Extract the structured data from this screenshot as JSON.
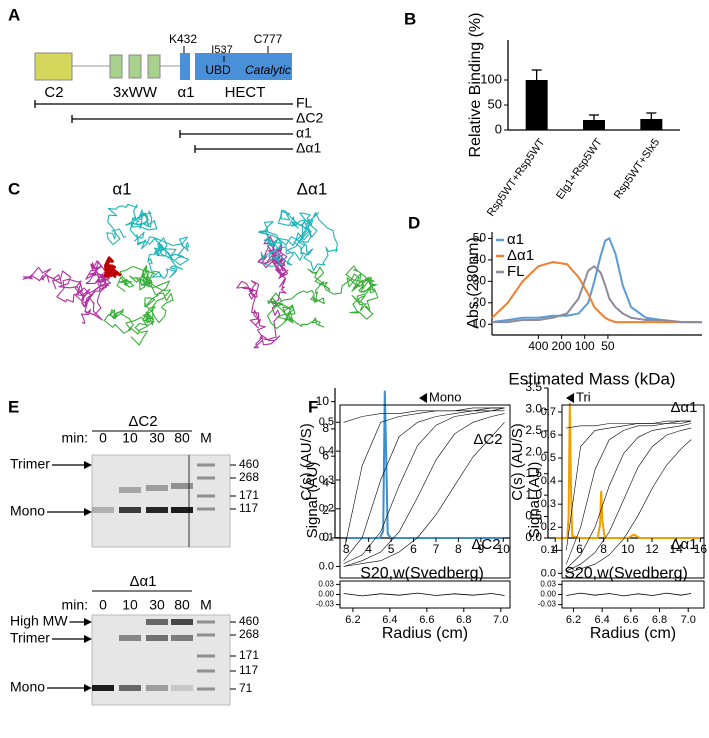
{
  "panel_labels": [
    "A",
    "B",
    "C",
    "D",
    "E",
    "F"
  ],
  "panel_a": {
    "domains": [
      "C2",
      "3xWW",
      "α1",
      "HECT"
    ],
    "residues": [
      "K432",
      "I537",
      "C777"
    ],
    "subdomains": [
      "UBD",
      "Catalytic"
    ],
    "constructs": [
      "FL",
      "ΔC2",
      "α1",
      "Δα1"
    ]
  },
  "panel_c": {
    "labels": [
      "α1",
      "Δα1"
    ]
  },
  "panel_e": {
    "gels": [
      {
        "title": "ΔC2",
        "time_label": "min:",
        "lanes": [
          0,
          10,
          30,
          80
        ],
        "marker_lane": "M",
        "bands": [
          "Trimer",
          "Mono"
        ],
        "markers": [
          460,
          268,
          171,
          117
        ]
      },
      {
        "title": "Δα1",
        "time_label": "min:",
        "lanes": [
          0,
          10,
          30,
          80
        ],
        "marker_lane": "M",
        "bands": [
          "High MW",
          "Trimer",
          "Mono"
        ],
        "markers": [
          460,
          268,
          171,
          117,
          71
        ]
      }
    ]
  },
  "chart_data": [
    {
      "type": "bar",
      "categories": [
        "Rsp5WT+Rsp5WT",
        "Elg1+Rsp5WT",
        "Rsp5WT+Slx5"
      ],
      "values": [
        100,
        20,
        22
      ],
      "errors": [
        20,
        10,
        12
      ],
      "color": "#000000",
      "ylim": [
        0,
        180
      ],
      "yticks": [
        0,
        50,
        100
      ],
      "y_label": "Relative Binding (%)"
    },
    {
      "type": "line",
      "x_scale": "log",
      "x": [
        1600,
        1000,
        640,
        400,
        260,
        170,
        120,
        90,
        75,
        62,
        54,
        48,
        40,
        32,
        25,
        16,
        10,
        5.5,
        3
      ],
      "xlim": [
        1600,
        3
      ],
      "xticks": [
        400,
        200,
        100,
        50
      ],
      "ylim": [
        5,
        53
      ],
      "yticks": [
        10,
        20,
        30,
        40,
        50
      ],
      "x_label": "Estimated Mass (kDa)",
      "y_label": "Abs (280nm)",
      "legend": "upper-left",
      "series": [
        {
          "name": "α1",
          "color": "#5b9bd5",
          "values": [
            11,
            12,
            13,
            13,
            14,
            14,
            15,
            20,
            30,
            42,
            49,
            50,
            43,
            28,
            18,
            13,
            12,
            11,
            11
          ]
        },
        {
          "name": "Δα1",
          "color": "#f07f2f",
          "values": [
            13,
            20,
            30,
            37,
            39,
            38,
            32,
            24,
            18,
            15,
            13,
            12,
            11,
            11,
            11,
            11,
            11,
            11,
            11
          ]
        },
        {
          "name": "FL",
          "color": "#8c8c9c",
          "values": [
            11,
            11,
            12,
            12,
            13,
            15,
            22,
            35,
            37,
            34,
            28,
            22,
            18,
            15,
            13,
            12,
            12,
            11,
            11
          ]
        }
      ]
    },
    {
      "type": "line",
      "x": [
        3,
        4.5,
        4.65,
        4.72,
        4.78,
        4.85,
        5,
        6,
        7,
        8,
        9,
        10
      ],
      "xlim": [
        2.5,
        10.3
      ],
      "xticks": [
        3,
        4,
        5,
        6,
        7,
        8,
        9,
        10
      ],
      "ylim": [
        0,
        11
      ],
      "yticks": [
        0,
        2,
        4,
        6,
        8,
        10
      ],
      "x_label": "S20,w(Svedberg)",
      "y_label": "C(s) (AU/S)",
      "annotation": "Mono",
      "label": "ΔC2",
      "series": [
        {
          "color": "#3b8fd0",
          "values": [
            0,
            0,
            0.5,
            10.8,
            6,
            0.3,
            0,
            0,
            0,
            0,
            0,
            0
          ]
        }
      ]
    },
    {
      "type": "line",
      "x": [
        4,
        5,
        5.1,
        5.2,
        5.3,
        5.4,
        6,
        7.5,
        7.7,
        7.8,
        7.9,
        8.1,
        9,
        10,
        10.5,
        11,
        12,
        14,
        16
      ],
      "xlim": [
        3.4,
        16.3
      ],
      "xticks": [
        4,
        6,
        8,
        10,
        12,
        14,
        16
      ],
      "ylim": [
        0,
        3.5
      ],
      "yticks": [
        {
          "value": 0,
          "label": "0.0"
        },
        0.5,
        {
          "value": 1,
          "label": "1.0"
        },
        1.5,
        {
          "value": 2,
          "label": "2.0"
        },
        2.5,
        {
          "value": 3,
          "label": "3.0"
        },
        3.5
      ],
      "x_label": "S20,w(Svedberg)",
      "y_label": "C(s) (AU/S)",
      "annotation": "Tri",
      "label": "Δα1",
      "series": [
        {
          "color": "#f0a000",
          "values": [
            0,
            0,
            0.5,
            3.15,
            1.2,
            0.05,
            0,
            0,
            0.3,
            1.1,
            0.4,
            0,
            0,
            0,
            0.08,
            0,
            0,
            0,
            0
          ]
        }
      ]
    },
    {
      "type": "line",
      "x": [
        6.15,
        6.25,
        6.35,
        6.45,
        6.55,
        6.65,
        6.75,
        6.85,
        6.95,
        7.02
      ],
      "xlim": [
        6.13,
        7.05
      ],
      "xticks": [
        6.2,
        6.4,
        6.6,
        6.8,
        {
          "value": 7,
          "label": "7.0"
        }
      ],
      "ylim": [
        -0.04,
        0.56
      ],
      "yticks": [
        {
          "value": 0,
          "label": "0.0"
        },
        0.1,
        0.2,
        0.3,
        0.4,
        0.5
      ],
      "x_label": "Radius (cm)",
      "y_label": "Signal (AU)",
      "label": "ΔC2",
      "series": [
        {
          "color": "#000000",
          "values": [
            0.5,
            0.52,
            0.53,
            0.53,
            0.54,
            0.54,
            0.54,
            0.55,
            0.55,
            0.55
          ]
        },
        {
          "color": "#000000",
          "values": [
            0.05,
            0.35,
            0.5,
            0.52,
            0.53,
            0.54,
            0.54,
            0.54,
            0.55,
            0.55
          ]
        },
        {
          "color": "#000000",
          "values": [
            0.02,
            0.1,
            0.3,
            0.45,
            0.5,
            0.52,
            0.53,
            0.54,
            0.54,
            0.55
          ]
        },
        {
          "color": "#000000",
          "values": [
            0.01,
            0.04,
            0.12,
            0.28,
            0.42,
            0.49,
            0.52,
            0.53,
            0.54,
            0.54
          ]
        },
        {
          "color": "#000000",
          "values": [
            0,
            0.02,
            0.05,
            0.12,
            0.24,
            0.37,
            0.46,
            0.5,
            0.52,
            0.53
          ]
        },
        {
          "color": "#000000",
          "values": [
            0,
            0.01,
            0.02,
            0.05,
            0.1,
            0.18,
            0.28,
            0.38,
            0.45,
            0.5
          ]
        }
      ],
      "residual": {
        "ylim": [
          -0.04,
          0.04
        ],
        "yticks": [
          -0.03,
          {
            "value": 0,
            "label": "0.00"
          },
          0.03
        ],
        "values": [
          0.003,
          -0.004,
          0.002,
          -0.002,
          0.004,
          -0.003,
          0.002,
          -0.002,
          0.003,
          -0.003
        ]
      }
    },
    {
      "type": "line",
      "x": [
        6.15,
        6.25,
        6.35,
        6.45,
        6.55,
        6.65,
        6.75,
        6.85,
        6.95,
        7.02
      ],
      "xlim": [
        6.12,
        7.11
      ],
      "xticks": [
        6.2,
        6.4,
        6.6,
        6.8,
        {
          "value": 7,
          "label": "7.0"
        }
      ],
      "ylim": [
        -0.02,
        0.73
      ],
      "yticks": [
        {
          "value": 0,
          "label": "0.0"
        },
        0.1,
        0.2,
        0.3,
        0.4,
        0.5,
        0.6,
        0.7
      ],
      "x_label": "Radius (cm)",
      "y_label": "Signal (AU)",
      "label": "Δα1",
      "series": [
        {
          "color": "#000000",
          "values": [
            0.63,
            0.64,
            0.64,
            0.65,
            0.65,
            0.65,
            0.65,
            0.66,
            0.66,
            0.66
          ]
        },
        {
          "color": "#000000",
          "values": [
            0.1,
            0.55,
            0.62,
            0.63,
            0.64,
            0.65,
            0.65,
            0.65,
            0.66,
            0.66
          ]
        },
        {
          "color": "#000000",
          "values": [
            0.04,
            0.2,
            0.45,
            0.58,
            0.62,
            0.64,
            0.64,
            0.65,
            0.65,
            0.66
          ]
        },
        {
          "color": "#000000",
          "values": [
            0.02,
            0.08,
            0.2,
            0.38,
            0.52,
            0.59,
            0.62,
            0.63,
            0.64,
            0.65
          ]
        },
        {
          "color": "#000000",
          "values": [
            0.01,
            0.04,
            0.09,
            0.18,
            0.32,
            0.46,
            0.55,
            0.6,
            0.62,
            0.63
          ]
        },
        {
          "color": "#000000",
          "values": [
            0,
            0.02,
            0.04,
            0.08,
            0.15,
            0.25,
            0.37,
            0.47,
            0.54,
            0.58
          ]
        }
      ],
      "residual": {
        "ylim": [
          -0.04,
          0.04
        ],
        "yticks": [
          -0.03,
          {
            "value": 0,
            "label": "0.00"
          },
          0.03
        ],
        "values": [
          -0.003,
          0.004,
          -0.002,
          0.003,
          -0.004,
          0.002,
          -0.003,
          0.004,
          -0.002,
          0.003
        ]
      }
    }
  ]
}
